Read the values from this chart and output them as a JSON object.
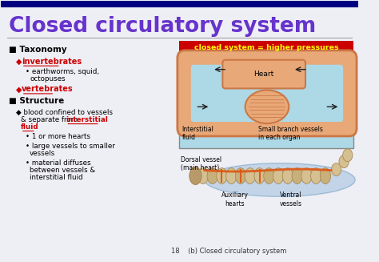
{
  "title": "Closed circulatory system",
  "title_color": "#6633CC",
  "title_fontsize": 19,
  "top_bar_color": "#000080",
  "slide_bg": "#EEEEF5",
  "red_box_text": "closed system = higher pressures",
  "red_box_color": "#CC0000",
  "diagram_bg": "#ADD8E6",
  "caption_bottom": "18    (b) Closed circulatory system",
  "dorsal_label": "Dorsal vessel\n(main heart)",
  "auxiliary_label": "Auxiliary\nhearts",
  "ventral_label": "Ventral\nvessels",
  "heart_label": "Heart",
  "interstitial_fluid_label": "Interstitial\nfluid",
  "small_branch_label": "Small branch vessels\nin each organ"
}
